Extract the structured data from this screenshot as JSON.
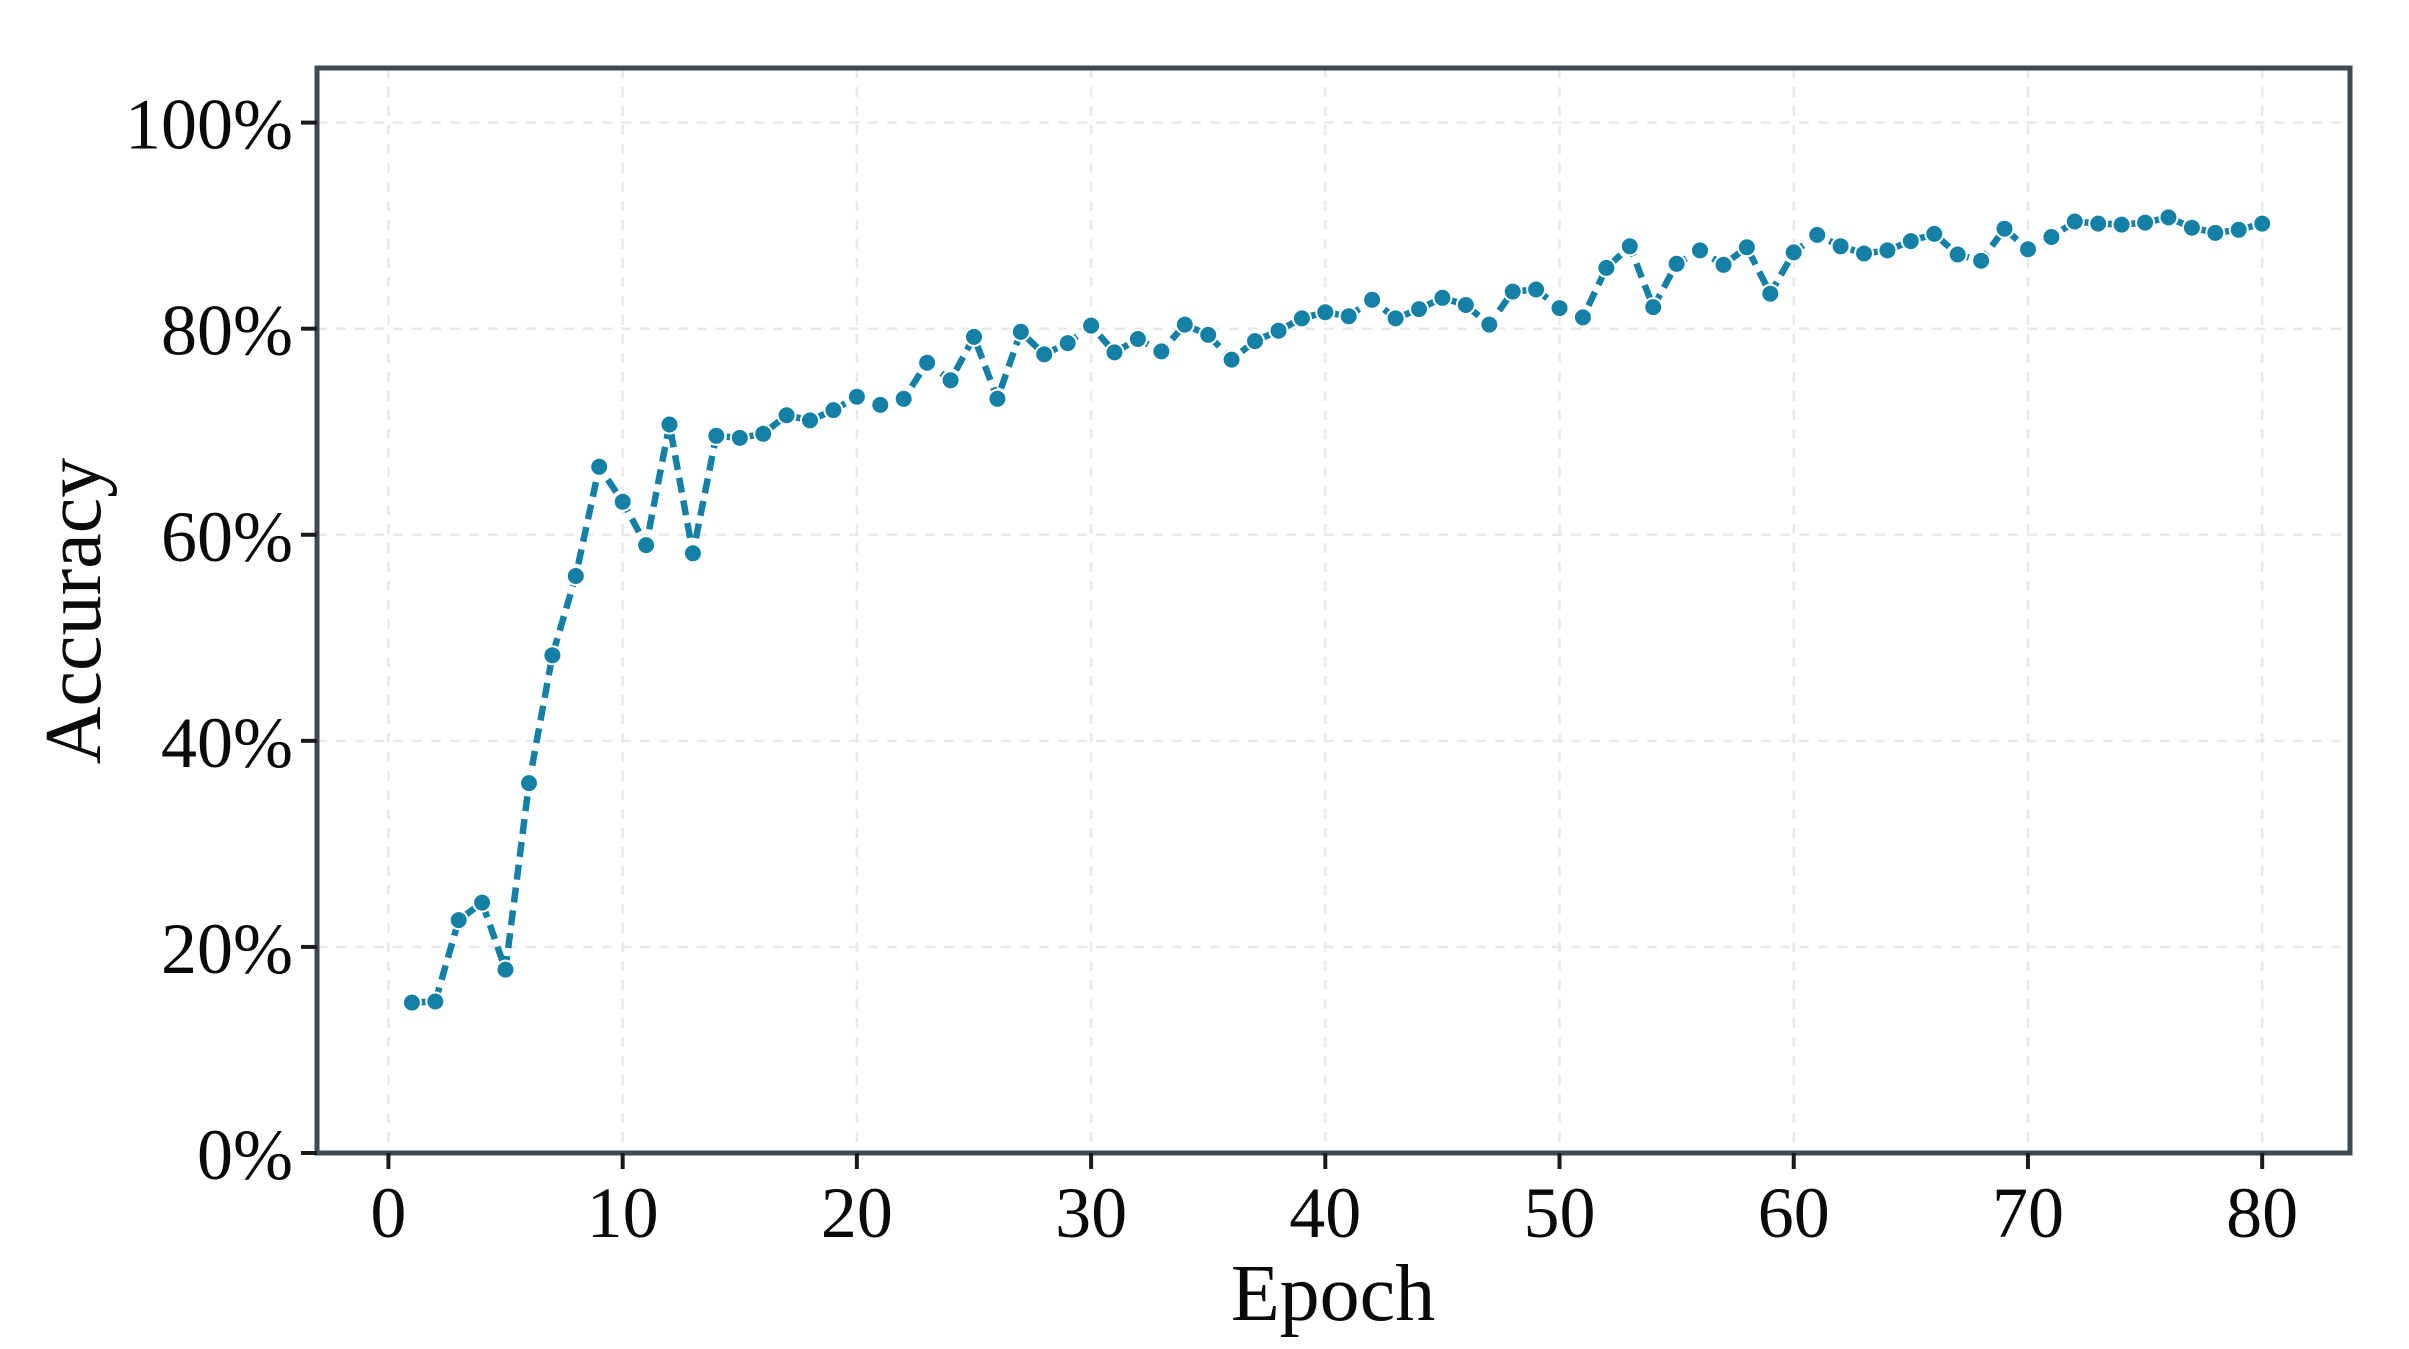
{
  "colors": {
    "line": "#1480a5",
    "marker_edge": "#ffffff",
    "frame": "#3d4a54",
    "grid": "#e7eae9",
    "tick": "#1a1a1a",
    "text": "#0a0a0a",
    "background": "#ffffff"
  },
  "chart_data": {
    "type": "line",
    "title": "",
    "xlabel": "Epoch",
    "ylabel": "Accuracy",
    "legend": "none",
    "grid": "dashed both axes",
    "x_ticks": [
      0,
      10,
      20,
      30,
      40,
      50,
      60,
      70,
      80
    ],
    "x_tick_labels": [
      "0",
      "10",
      "20",
      "30",
      "40",
      "50",
      "60",
      "70",
      "80"
    ],
    "y_ticks": [
      0,
      20,
      40,
      60,
      80,
      100
    ],
    "y_tick_labels": [
      "0%",
      "20%",
      "40%",
      "60%",
      "80%",
      "100%"
    ],
    "xlim": [
      -3.05,
      83.75
    ],
    "ylim": [
      0,
      105.3
    ],
    "series": [
      {
        "name": "accuracy",
        "line_style": "dashed",
        "marker": "circle",
        "x": [
          1,
          2,
          3,
          4,
          5,
          6,
          7,
          8,
          9,
          10,
          11,
          12,
          13,
          14,
          15,
          16,
          17,
          18,
          19,
          20,
          21,
          22,
          23,
          24,
          25,
          26,
          27,
          28,
          29,
          30,
          31,
          32,
          33,
          34,
          35,
          36,
          37,
          38,
          39,
          40,
          41,
          42,
          43,
          44,
          45,
          46,
          47,
          48,
          49,
          50,
          51,
          52,
          53,
          54,
          55,
          56,
          57,
          58,
          59,
          60,
          61,
          62,
          63,
          64,
          65,
          66,
          67,
          68,
          69,
          70,
          71,
          72,
          73,
          74,
          75,
          76,
          77,
          78,
          79,
          80
        ],
        "values": [
          14.6,
          14.7,
          22.6,
          24.3,
          17.8,
          35.9,
          48.3,
          56.0,
          66.6,
          63.2,
          59.0,
          70.7,
          58.2,
          69.6,
          69.4,
          69.8,
          71.6,
          71.1,
          72.1,
          73.4,
          72.6,
          73.2,
          76.7,
          75.0,
          79.2,
          73.2,
          79.7,
          77.5,
          78.6,
          80.3,
          77.7,
          79.0,
          77.8,
          80.4,
          79.4,
          77.0,
          78.8,
          79.8,
          81.0,
          81.6,
          81.2,
          82.8,
          81.0,
          81.9,
          83.0,
          82.3,
          80.4,
          83.6,
          83.8,
          82.0,
          81.1,
          85.9,
          88.0,
          82.1,
          86.3,
          87.6,
          86.2,
          87.9,
          83.4,
          87.4,
          89.1,
          88.0,
          87.3,
          87.6,
          88.5,
          89.2,
          87.2,
          86.6,
          89.7,
          87.7,
          88.9,
          90.4,
          90.2,
          90.1,
          90.3,
          90.8,
          89.8,
          89.3,
          89.6,
          90.2
        ]
      }
    ]
  }
}
